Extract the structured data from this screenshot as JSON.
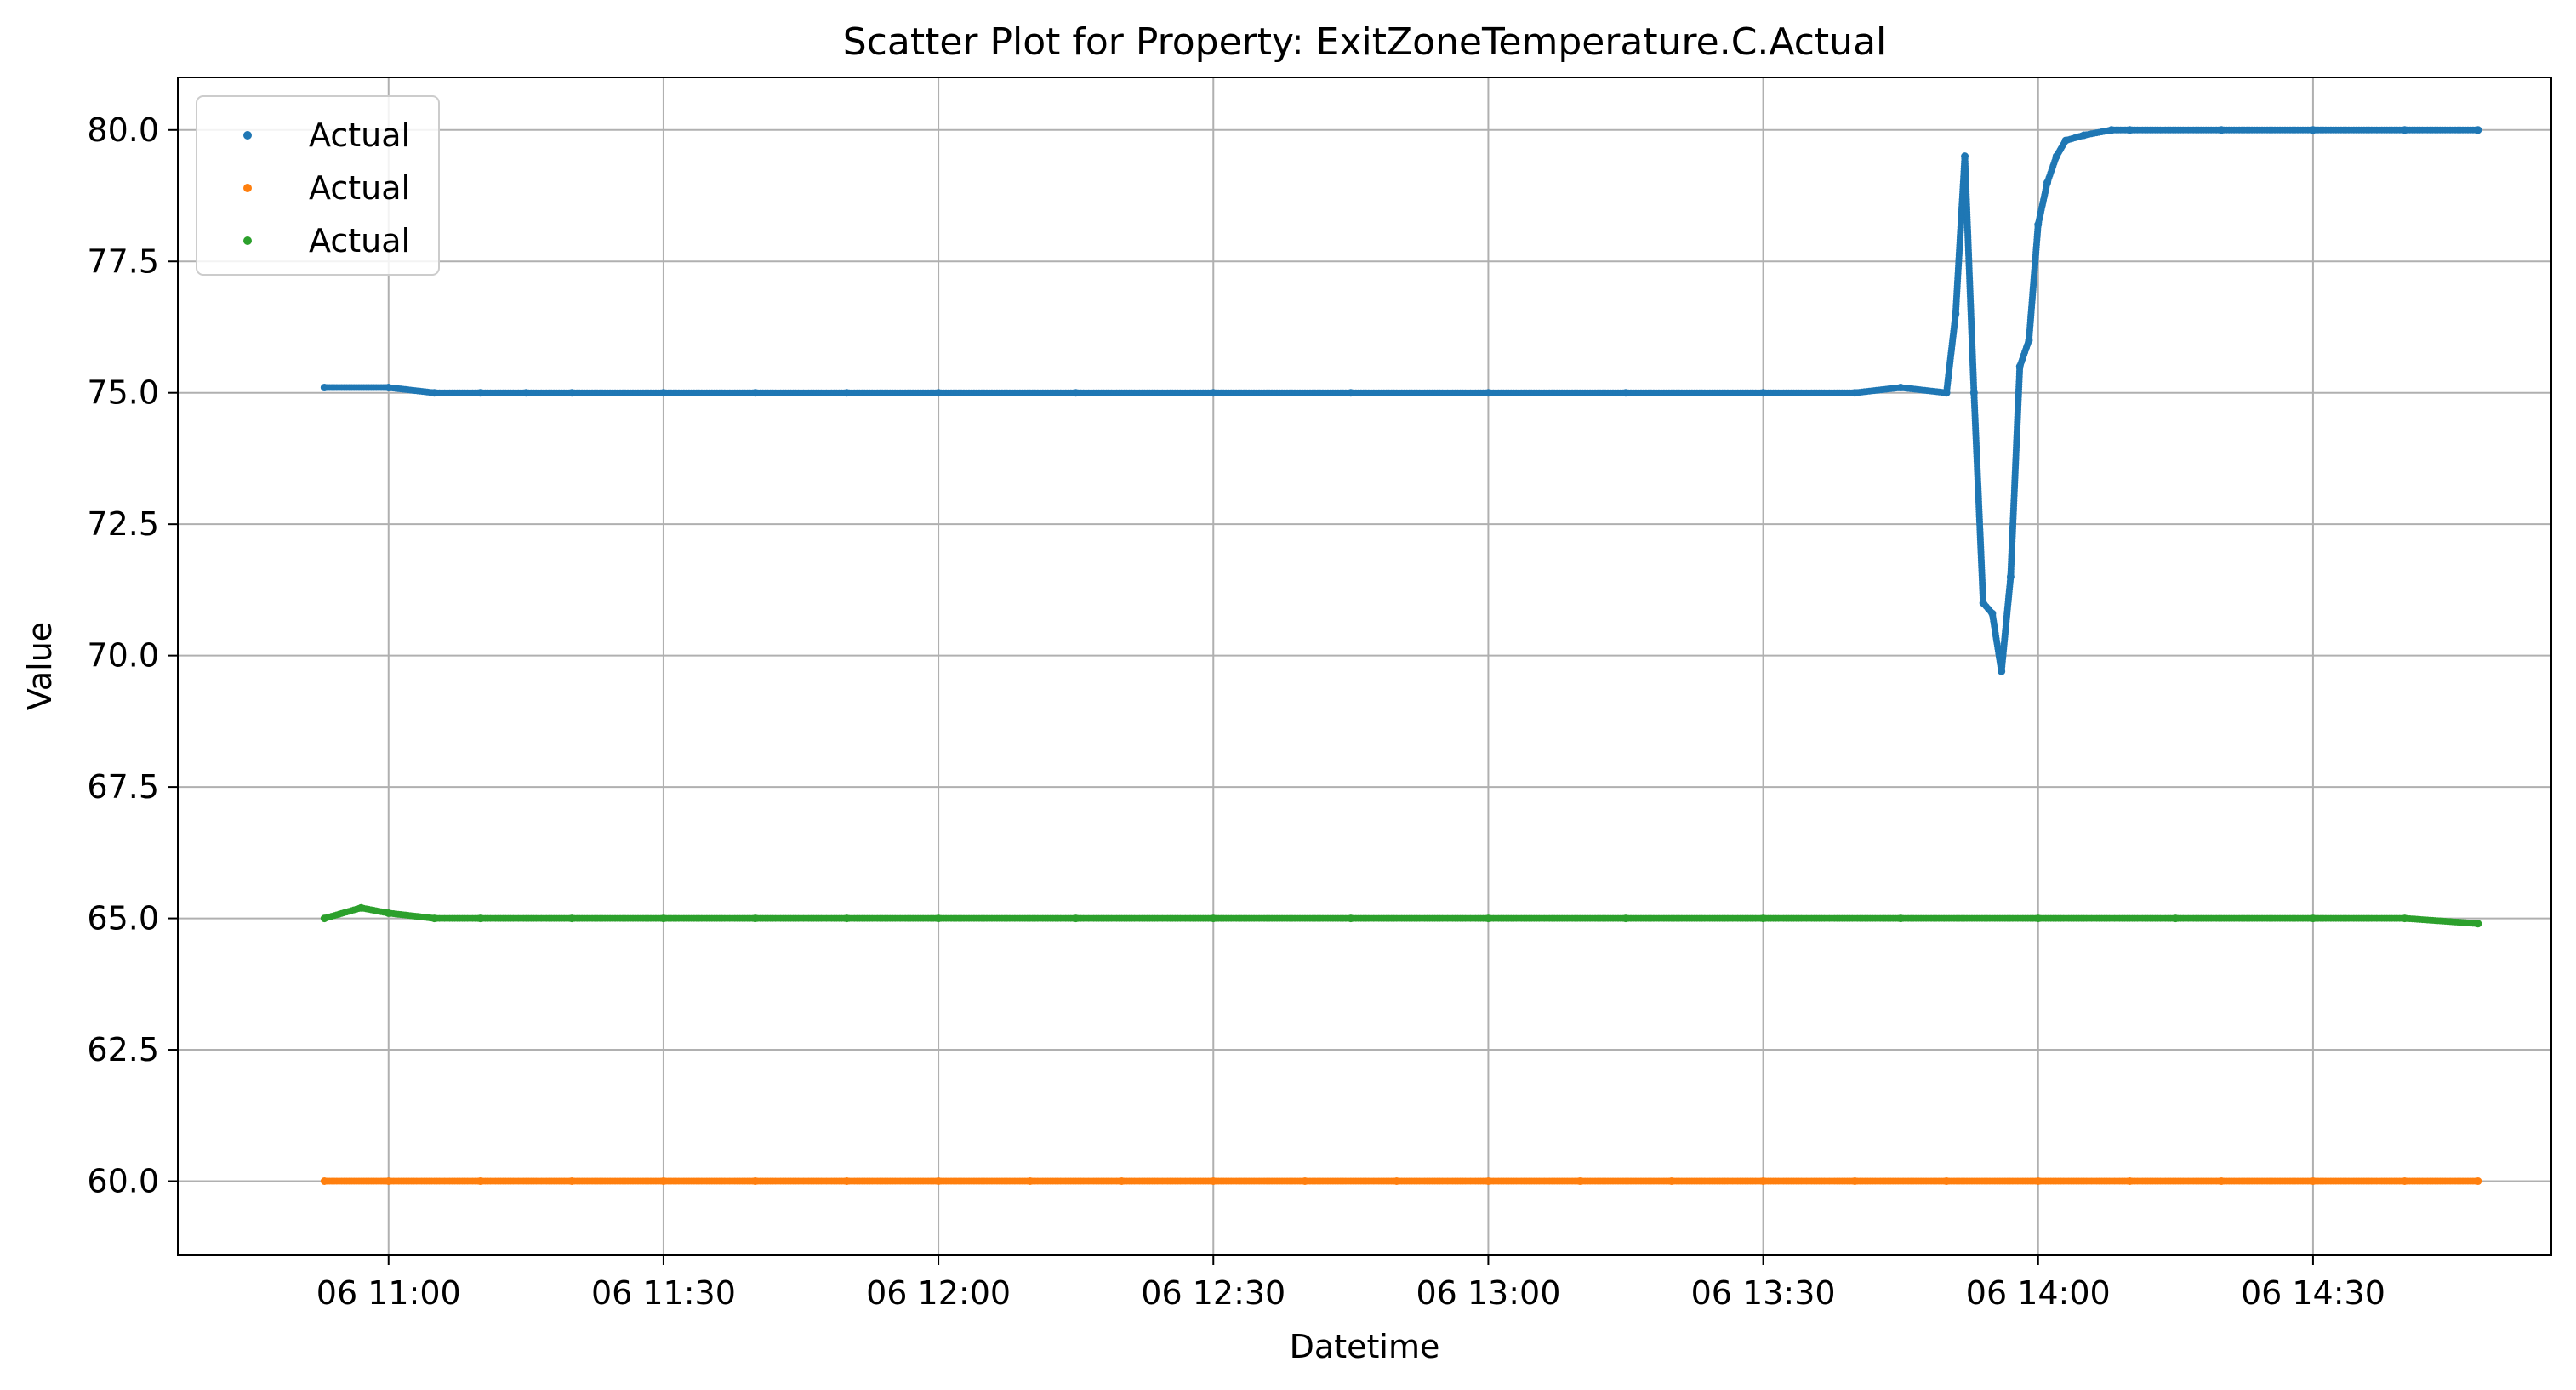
{
  "chart_data": {
    "type": "scatter",
    "title": "Scatter Plot for Property: ExitZoneTemperature.C.Actual",
    "xlabel": "Datetime",
    "ylabel": "Value",
    "xlim": [
      "10:37",
      "14:56"
    ],
    "ylim": [
      58.6,
      81.0
    ],
    "xticks": [
      {
        "t": "11:00",
        "label": "06 11:00"
      },
      {
        "t": "11:30",
        "label": "06 11:30"
      },
      {
        "t": "12:00",
        "label": "06 12:00"
      },
      {
        "t": "12:30",
        "label": "06 12:30"
      },
      {
        "t": "13:00",
        "label": "06 13:00"
      },
      {
        "t": "13:30",
        "label": "06 13:30"
      },
      {
        "t": "14:00",
        "label": "06 14:00"
      },
      {
        "t": "14:30",
        "label": "06 14:30"
      }
    ],
    "yticks": [
      {
        "v": 60.0,
        "label": "60.0"
      },
      {
        "v": 62.5,
        "label": "62.5"
      },
      {
        "v": 65.0,
        "label": "65.0"
      },
      {
        "v": 67.5,
        "label": "67.5"
      },
      {
        "v": 70.0,
        "label": "70.0"
      },
      {
        "v": 72.5,
        "label": "72.5"
      },
      {
        "v": 75.0,
        "label": "75.0"
      },
      {
        "v": 77.5,
        "label": "77.5"
      },
      {
        "v": 80.0,
        "label": "80.0"
      }
    ],
    "grid": true,
    "legend_position": "upper-left",
    "series": [
      {
        "name": "Actual",
        "color": "#1f77b4",
        "x": [
          "10:53",
          "11:00",
          "11:05",
          "11:10",
          "11:15",
          "11:20",
          "11:30",
          "11:40",
          "11:50",
          "12:00",
          "12:15",
          "12:30",
          "12:45",
          "13:00",
          "13:15",
          "13:30",
          "13:40",
          "13:45",
          "13:50",
          "13:51",
          "13:52",
          "13:53",
          "13:54",
          "13:55",
          "13:56",
          "13:57",
          "13:58",
          "13:59",
          "14:00",
          "14:01",
          "14:02",
          "14:03",
          "14:05",
          "14:08",
          "14:10",
          "14:20",
          "14:30",
          "14:40",
          "14:48"
        ],
        "y": [
          75.1,
          75.1,
          75.0,
          75.0,
          75.0,
          75.0,
          75.0,
          75.0,
          75.0,
          75.0,
          75.0,
          75.0,
          75.0,
          75.0,
          75.0,
          75.0,
          75.0,
          75.1,
          75.0,
          76.5,
          79.5,
          75.0,
          71.0,
          70.8,
          69.7,
          71.5,
          75.5,
          76.0,
          78.2,
          79.0,
          79.5,
          79.8,
          79.9,
          80.0,
          80.0,
          80.0,
          80.0,
          80.0,
          80.0
        ]
      },
      {
        "name": "Actual",
        "color": "#ff7f0e",
        "x": [
          "10:53",
          "11:00",
          "11:10",
          "11:20",
          "11:30",
          "11:40",
          "11:50",
          "12:00",
          "12:10",
          "12:20",
          "12:30",
          "12:40",
          "12:50",
          "13:00",
          "13:10",
          "13:20",
          "13:30",
          "13:40",
          "13:50",
          "14:00",
          "14:10",
          "14:20",
          "14:30",
          "14:40",
          "14:48"
        ],
        "y": [
          60.0,
          60.0,
          60.0,
          60.0,
          60.0,
          60.0,
          60.0,
          60.0,
          60.0,
          60.0,
          60.0,
          60.0,
          60.0,
          60.0,
          60.0,
          60.0,
          60.0,
          60.0,
          60.0,
          60.0,
          60.0,
          60.0,
          60.0,
          60.0,
          60.0
        ]
      },
      {
        "name": "Actual",
        "color": "#2ca02c",
        "x": [
          "10:53",
          "10:57",
          "11:00",
          "11:05",
          "11:10",
          "11:20",
          "11:30",
          "11:40",
          "11:50",
          "12:00",
          "12:15",
          "12:30",
          "12:45",
          "13:00",
          "13:15",
          "13:30",
          "13:45",
          "14:00",
          "14:15",
          "14:30",
          "14:40",
          "14:48"
        ],
        "y": [
          65.0,
          65.2,
          65.1,
          65.0,
          65.0,
          65.0,
          65.0,
          65.0,
          65.0,
          65.0,
          65.0,
          65.0,
          65.0,
          65.0,
          65.0,
          65.0,
          65.0,
          65.0,
          65.0,
          65.0,
          65.0,
          64.9
        ]
      }
    ]
  }
}
